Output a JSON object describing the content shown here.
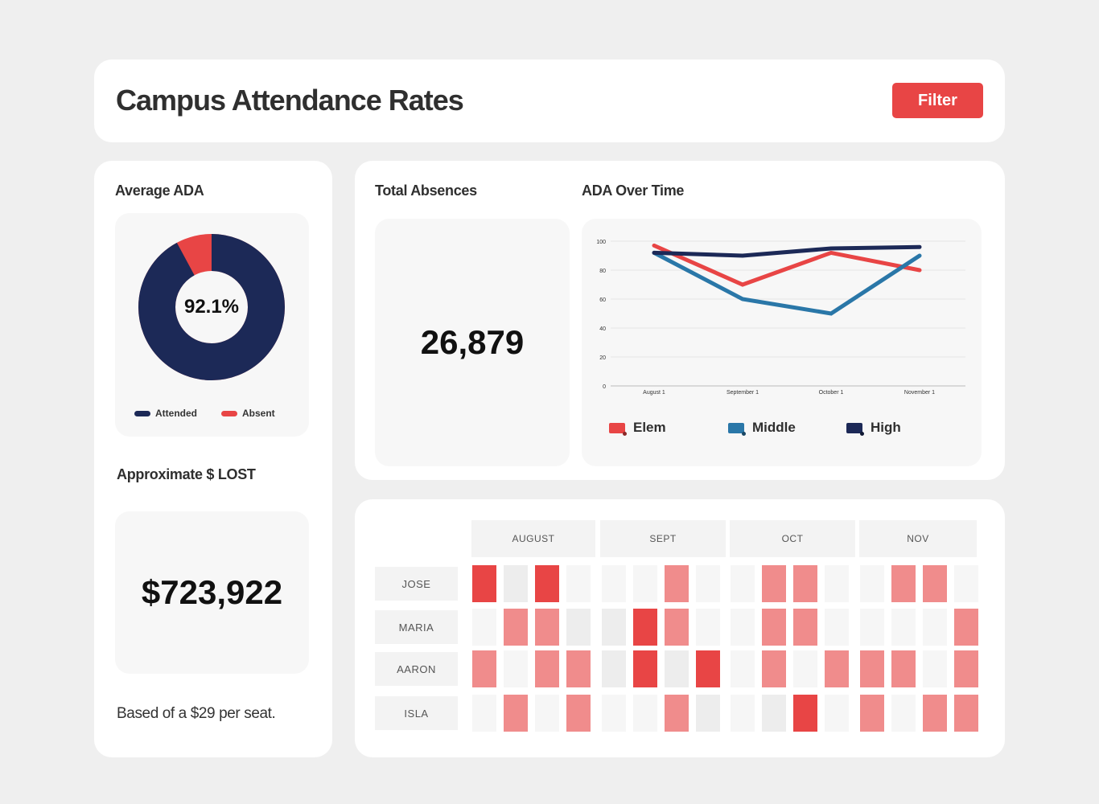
{
  "header": {
    "title": "Campus Attendance Rates",
    "filter_label": "Filter"
  },
  "average_ada": {
    "label": "Average ADA",
    "value": "92.1%",
    "attended_fraction": 0.921,
    "legend": [
      {
        "label": "Attended",
        "color": "#1c2957"
      },
      {
        "label": "Absent",
        "color": "#e84545"
      }
    ]
  },
  "lost": {
    "label": "Approximate $ LOST",
    "value": "$723,922",
    "note": "Based of a $29 per seat."
  },
  "absences": {
    "label": "Total Absences",
    "value": "26,879"
  },
  "chart_data": {
    "type": "line",
    "title": "ADA Over Time",
    "categories": [
      "August 1",
      "September 1",
      "October 1",
      "November 1"
    ],
    "y_ticks": [
      "0",
      "20",
      "40",
      "60",
      "80",
      "100"
    ],
    "ylim": [
      0,
      100
    ],
    "grid": true,
    "legend_position": "bottom",
    "series": [
      {
        "name": "Elem",
        "color": "#e84545",
        "values": [
          97,
          70,
          92,
          80
        ]
      },
      {
        "name": "Middle",
        "color": "#2a77a8",
        "values": [
          92,
          60,
          50,
          90
        ]
      },
      {
        "name": "High",
        "color": "#1c2957",
        "values": [
          92,
          90,
          95,
          96
        ]
      }
    ]
  },
  "heatmap": {
    "months": [
      "AUGUST",
      "SEPT",
      "OCT",
      "NOV"
    ],
    "levels": {
      "0": "#f6f6f6",
      "1": "#ededed",
      "2": "#f08c8c",
      "3": "#e84545"
    },
    "rows": [
      {
        "name": "JOSE",
        "values": [
          3,
          1,
          3,
          0,
          0,
          0,
          2,
          0,
          0,
          2,
          2,
          0,
          0,
          2,
          2,
          0
        ]
      },
      {
        "name": "MARIA",
        "values": [
          0,
          2,
          2,
          1,
          1,
          3,
          2,
          0,
          0,
          2,
          2,
          0,
          0,
          0,
          0,
          2
        ]
      },
      {
        "name": "AARON",
        "values": [
          2,
          0,
          2,
          2,
          1,
          3,
          1,
          3,
          0,
          2,
          0,
          2,
          2,
          2,
          0,
          2
        ]
      },
      {
        "name": "ISLA",
        "values": [
          0,
          2,
          0,
          2,
          0,
          0,
          2,
          1,
          0,
          1,
          3,
          0,
          2,
          0,
          2,
          2
        ]
      }
    ]
  }
}
